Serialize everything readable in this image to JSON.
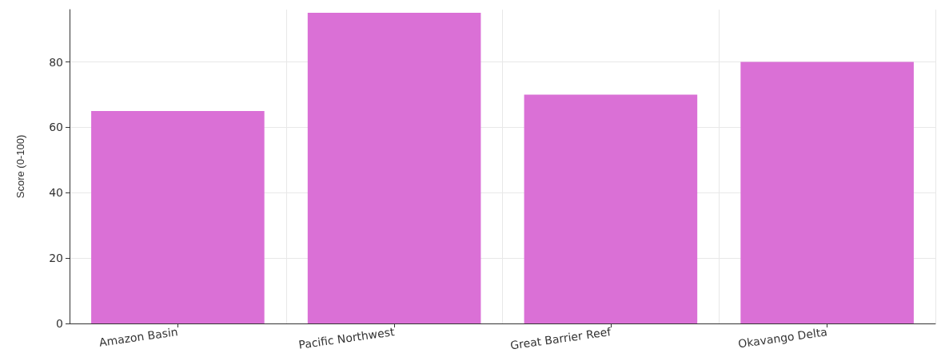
{
  "chart_data": {
    "type": "bar",
    "ylabel": "Score (0-100)",
    "categories": [
      "Amazon Basin",
      "Pacific Northwest",
      "Great Barrier Reef",
      "Okavango Delta"
    ],
    "values": [
      65,
      95,
      70,
      80
    ],
    "color": "#da70d6",
    "ylim": [
      0,
      96
    ],
    "yticks": [
      0,
      20,
      40,
      60,
      80
    ],
    "grid": true
  }
}
